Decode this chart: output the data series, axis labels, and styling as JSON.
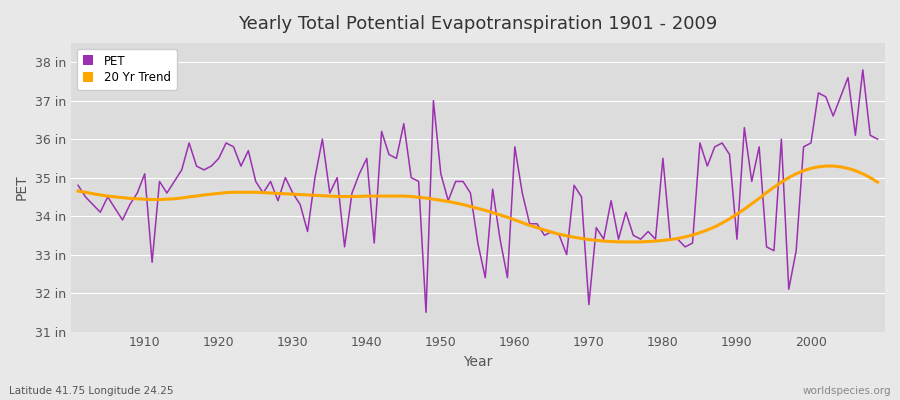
{
  "title": "Yearly Total Potential Evapotranspiration 1901 - 2009",
  "xlabel": "Year",
  "ylabel": "PET",
  "footnote_left": "Latitude 41.75 Longitude 24.25",
  "footnote_right": "worldspecies.org",
  "pet_color": "#9B30B0",
  "trend_color": "#FFA500",
  "background_color": "#E8E8E8",
  "plot_bg_color": "#DCDCDC",
  "grid_color": "#FFFFFF",
  "ylim": [
    31,
    38.5
  ],
  "yticks": [
    31,
    32,
    33,
    34,
    35,
    36,
    37,
    38
  ],
  "ytick_labels": [
    "31 in",
    "32 in",
    "33 in",
    "34 in",
    "35 in",
    "36 in",
    "37 in",
    "38 in"
  ],
  "xlim": [
    1900,
    2010
  ],
  "xticks": [
    1910,
    1920,
    1930,
    1940,
    1950,
    1960,
    1970,
    1980,
    1990,
    2000
  ],
  "years": [
    1901,
    1902,
    1903,
    1904,
    1905,
    1906,
    1907,
    1908,
    1909,
    1910,
    1911,
    1912,
    1913,
    1914,
    1915,
    1916,
    1917,
    1918,
    1919,
    1920,
    1921,
    1922,
    1923,
    1924,
    1925,
    1926,
    1927,
    1928,
    1929,
    1930,
    1931,
    1932,
    1933,
    1934,
    1935,
    1936,
    1937,
    1938,
    1939,
    1940,
    1941,
    1942,
    1943,
    1944,
    1945,
    1946,
    1947,
    1948,
    1949,
    1950,
    1951,
    1952,
    1953,
    1954,
    1955,
    1956,
    1957,
    1958,
    1959,
    1960,
    1961,
    1962,
    1963,
    1964,
    1965,
    1966,
    1967,
    1968,
    1969,
    1970,
    1971,
    1972,
    1973,
    1974,
    1975,
    1976,
    1977,
    1978,
    1979,
    1980,
    1981,
    1982,
    1983,
    1984,
    1985,
    1986,
    1987,
    1988,
    1989,
    1990,
    1991,
    1992,
    1993,
    1994,
    1995,
    1996,
    1997,
    1998,
    1999,
    2000,
    2001,
    2002,
    2003,
    2004,
    2005,
    2006,
    2007,
    2008,
    2009
  ],
  "pet_values": [
    34.8,
    34.5,
    34.3,
    34.1,
    34.5,
    34.2,
    33.9,
    34.3,
    34.6,
    35.1,
    32.8,
    34.9,
    34.6,
    34.9,
    35.2,
    35.9,
    35.3,
    35.2,
    35.3,
    35.5,
    35.9,
    35.8,
    35.3,
    35.7,
    34.9,
    34.6,
    34.9,
    34.4,
    35.0,
    34.6,
    34.3,
    33.6,
    35.0,
    36.0,
    34.6,
    35.0,
    33.2,
    34.6,
    35.1,
    35.5,
    33.3,
    36.2,
    35.6,
    35.5,
    36.4,
    35.0,
    34.9,
    31.5,
    37.0,
    35.1,
    34.4,
    34.9,
    34.9,
    34.6,
    33.3,
    32.4,
    34.7,
    33.4,
    32.4,
    35.8,
    34.6,
    33.8,
    33.8,
    33.5,
    33.6,
    33.5,
    33.0,
    34.8,
    34.5,
    31.7,
    33.7,
    33.4,
    34.4,
    33.4,
    34.1,
    33.5,
    33.4,
    33.6,
    33.4,
    35.5,
    33.4,
    33.4,
    33.2,
    33.3,
    35.9,
    35.3,
    35.8,
    35.9,
    35.6,
    33.4,
    36.3,
    34.9,
    35.8,
    33.2,
    33.1,
    36.0,
    32.1,
    33.1,
    35.8,
    35.9,
    37.2,
    37.1,
    36.6,
    37.1,
    37.6,
    36.1,
    37.8,
    36.1,
    36.0
  ],
  "trend_values_years": [
    1901,
    1902,
    1903,
    1904,
    1905,
    1906,
    1907,
    1908,
    1909,
    1910,
    1911,
    1912,
    1913,
    1914,
    1915,
    1916,
    1917,
    1918,
    1919,
    1920,
    1921,
    1922,
    1923,
    1924,
    1925,
    1926,
    1927,
    1928,
    1929,
    1930,
    1931,
    1932,
    1933,
    1934,
    1935,
    1936,
    1937,
    1938,
    1939,
    1940,
    1941,
    1942,
    1943,
    1944,
    1945,
    1946,
    1947,
    1948,
    1949,
    1950,
    1951,
    1952,
    1953,
    1954,
    1955,
    1956,
    1957,
    1958,
    1959,
    1960,
    1961,
    1962,
    1963,
    1964,
    1965,
    1966,
    1967,
    1968,
    1969,
    1970,
    1971,
    1972,
    1973,
    1974,
    1975,
    1976,
    1977,
    1978,
    1979,
    1980,
    1981,
    1982,
    1983,
    1984,
    1985,
    1986,
    1987,
    1988,
    1989,
    1990,
    1991,
    1992,
    1993,
    1994,
    1995,
    1996,
    1997,
    1998,
    1999,
    2000,
    2001,
    2002,
    2003,
    2004,
    2005,
    2006,
    2007,
    2008,
    2009
  ],
  "trend_values": [
    34.65,
    34.62,
    34.58,
    34.55,
    34.52,
    34.5,
    34.48,
    34.46,
    34.45,
    34.44,
    34.43,
    34.43,
    34.44,
    34.45,
    34.47,
    34.5,
    34.52,
    34.55,
    34.57,
    34.59,
    34.61,
    34.62,
    34.62,
    34.62,
    34.62,
    34.61,
    34.6,
    34.59,
    34.58,
    34.57,
    34.56,
    34.55,
    34.54,
    34.53,
    34.52,
    34.51,
    34.51,
    34.51,
    34.51,
    34.52,
    34.52,
    34.52,
    34.52,
    34.52,
    34.52,
    34.51,
    34.49,
    34.47,
    34.44,
    34.41,
    34.38,
    34.34,
    34.3,
    34.25,
    34.2,
    34.15,
    34.09,
    34.03,
    33.97,
    33.9,
    33.83,
    33.76,
    33.7,
    33.64,
    33.58,
    33.53,
    33.49,
    33.45,
    33.42,
    33.39,
    33.37,
    33.35,
    33.34,
    33.33,
    33.33,
    33.33,
    33.33,
    33.34,
    33.35,
    33.37,
    33.39,
    33.42,
    33.46,
    33.51,
    33.57,
    33.64,
    33.72,
    33.82,
    33.93,
    34.05,
    34.18,
    34.32,
    34.46,
    34.61,
    34.75,
    34.88,
    35.0,
    35.1,
    35.18,
    35.24,
    35.28,
    35.3,
    35.3,
    35.28,
    35.24,
    35.18,
    35.1,
    35.0,
    34.88
  ]
}
